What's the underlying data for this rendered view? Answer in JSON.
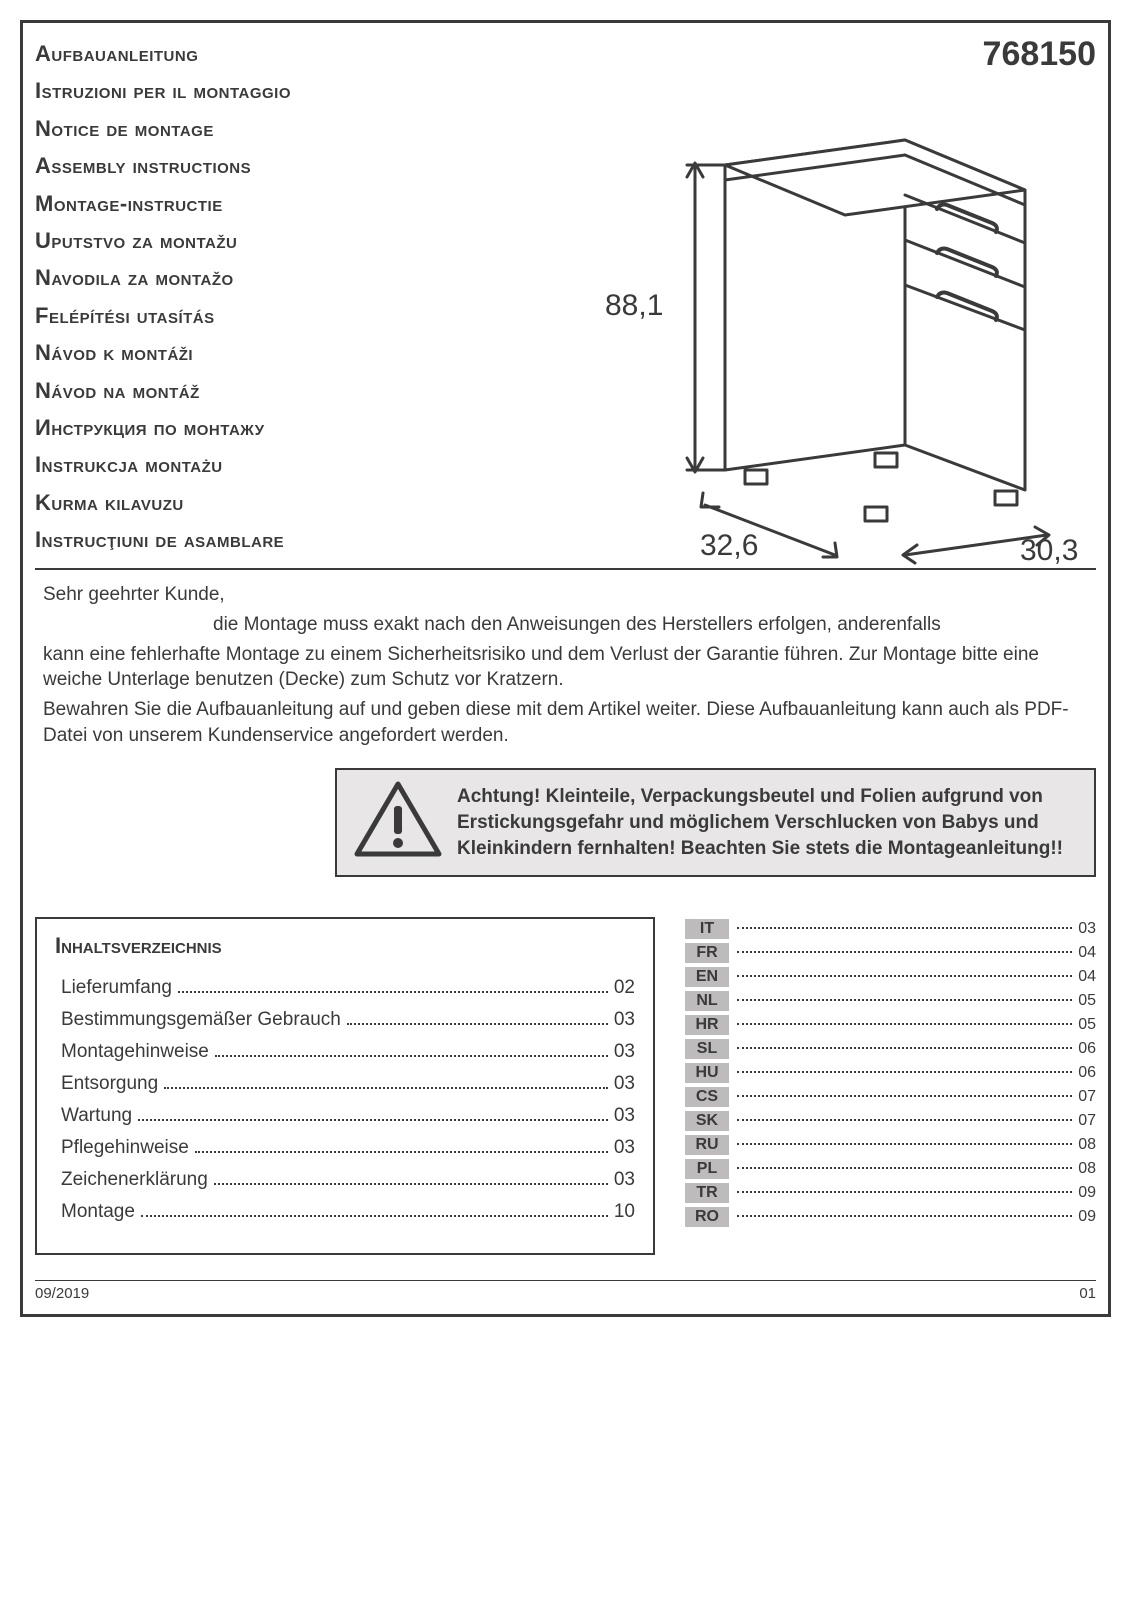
{
  "product_number": "768150",
  "titles": [
    "Aufbauanleitung",
    "Istruzioni per il montaggio",
    "Notice de montage",
    "Assembly instructions",
    "Montage-instructie",
    "Uputstvo za montažu",
    "Navodila za montažo",
    "Felépítési utasítás",
    "Návod k montáži",
    "Návod na montáž",
    "Инструкция по монтажу",
    "Instrukcja montażu",
    "Kurma kilavuzu",
    "Instrucţiuni de asamblare"
  ],
  "dimensions": {
    "height": "88,1",
    "depth": "32,6",
    "width": "30,3"
  },
  "greeting": "Sehr geehrter Kunde,",
  "para1a": "die Montage muss exakt nach den Anweisungen des Herstellers erfolgen, anderenfalls",
  "para1b": "kann eine fehlerhafte Montage zu einem Sicherheitsrisiko und dem Verlust der Garantie führen. Zur Montage bitte eine weiche Unterlage benutzen (Decke) zum Schutz vor Kratzern.",
  "para2": "Bewahren Sie die Aufbauanleitung auf und geben diese mit dem Artikel weiter. Diese Aufbauanleitung kann auch als PDF-Datei von unserem Kundenservice angefordert werden.",
  "warning": "Achtung! Kleinteile, Verpackungsbeutel und Folien aufgrund von Erstickungsgefahr und möglichem Verschlucken von Babys und Kleinkindern fernhalten! Beachten Sie stets die Montageanleitung!!",
  "toc_title": "Inhaltsverzeichnis",
  "toc": [
    {
      "label": "Lieferumfang",
      "page": "02"
    },
    {
      "label": "Bestimmungsgemäßer  Gebrauch",
      "page": "03"
    },
    {
      "label": "Montagehinweise",
      "page": "03"
    },
    {
      "label": "Entsorgung",
      "page": "03"
    },
    {
      "label": "Wartung",
      "page": "03"
    },
    {
      "label": "Pflegehinweise",
      "page": "03"
    },
    {
      "label": "Zeichenerklärung",
      "page": "03"
    },
    {
      "label": "Montage",
      "page": "10"
    }
  ],
  "langs": [
    {
      "code": "IT",
      "page": "03"
    },
    {
      "code": "FR",
      "page": "04"
    },
    {
      "code": "EN",
      "page": "04"
    },
    {
      "code": "NL",
      "page": "05"
    },
    {
      "code": "HR",
      "page": "05"
    },
    {
      "code": "SL",
      "page": "06"
    },
    {
      "code": "HU",
      "page": "06"
    },
    {
      "code": "CS",
      "page": "07"
    },
    {
      "code": "SK",
      "page": "07"
    },
    {
      "code": "RU",
      "page": "08"
    },
    {
      "code": "PL",
      "page": "08"
    },
    {
      "code": "TR",
      "page": "09"
    },
    {
      "code": "RO",
      "page": "09"
    }
  ],
  "footer_date": "09/2019",
  "footer_page": "01",
  "style": {
    "color_text": "#3a3a3a",
    "color_bg": "#ffffff",
    "color_warn_bg": "#e8e6e7",
    "color_lang_bg": "#bdbbbc",
    "title_fontsize": 22,
    "productnum_fontsize": 34,
    "body_fontsize": 19,
    "lang_fontsize": 16
  }
}
